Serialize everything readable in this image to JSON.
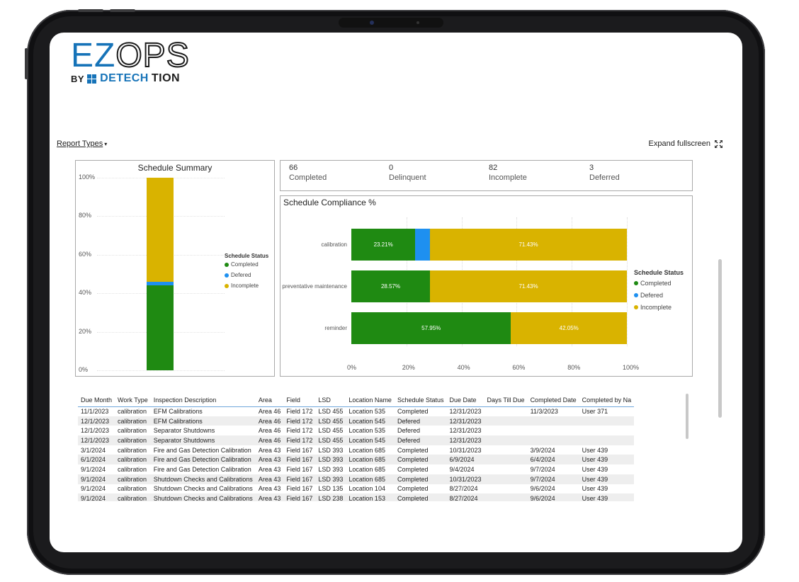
{
  "logo": {
    "main_ez": "EZ",
    "main_ops": "OPS",
    "by": "BY",
    "company_det": "DETECH",
    "company_tion": "TION"
  },
  "toolbar": {
    "report_types": "Report Types",
    "expand": "Expand fullscreen"
  },
  "colors": {
    "completed": "#1f8a12",
    "deferred": "#1e90f0",
    "incomplete": "#d9b300"
  },
  "kpis": [
    {
      "value": "66",
      "label": "Completed"
    },
    {
      "value": "0",
      "label": "Delinquent"
    },
    {
      "value": "82",
      "label": "Incomplete"
    },
    {
      "value": "3",
      "label": "Deferred"
    }
  ],
  "chart_data": [
    {
      "type": "bar",
      "title": "Schedule Summary",
      "categories": [
        ""
      ],
      "series": [
        {
          "name": "Completed",
          "values": [
            44
          ]
        },
        {
          "name": "Defered",
          "values": [
            2
          ]
        },
        {
          "name": "Incomplete",
          "values": [
            54
          ]
        }
      ],
      "ytick_labels": [
        "100%",
        "80%",
        "60%",
        "40%",
        "20%",
        "0%"
      ],
      "ylim": [
        0,
        100
      ],
      "stacked": true,
      "legend_title": "Schedule Status",
      "legend_position": "right"
    },
    {
      "type": "bar",
      "orientation": "horizontal",
      "title": "Schedule Compliance %",
      "categories": [
        "calibration",
        "preventative maintenance",
        "reminder"
      ],
      "series": [
        {
          "name": "Completed",
          "values": [
            23.21,
            28.57,
            57.95
          ]
        },
        {
          "name": "Defered",
          "values": [
            5.36,
            0,
            0
          ]
        },
        {
          "name": "Incomplete",
          "values": [
            71.43,
            71.43,
            42.05
          ]
        }
      ],
      "data_labels": [
        [
          "23.21%",
          "",
          "71.43%"
        ],
        [
          "28.57%",
          "",
          "71.43%"
        ],
        [
          "57.95%",
          "",
          "42.05%"
        ]
      ],
      "xtick_labels": [
        "0%",
        "20%",
        "40%",
        "60%",
        "80%",
        "100%"
      ],
      "xlim": [
        0,
        100
      ],
      "stacked": true,
      "legend_title": "Schedule Status",
      "legend_position": "right"
    }
  ],
  "table": {
    "headers": [
      "Due Month",
      "Work Type",
      "Inspection Description",
      "Area",
      "Field",
      "LSD",
      "Location Name",
      "Schedule Status",
      "Due Date",
      "Days Till Due",
      "Completed Date",
      "Completed by Na"
    ],
    "rows": [
      [
        "11/1/2023",
        "calibration",
        "EFM Calibrations",
        "Area 46",
        "Field 172",
        "LSD 455",
        "Location 535",
        "Completed",
        "12/31/2023",
        "",
        "11/3/2023",
        "User 371"
      ],
      [
        "12/1/2023",
        "calibration",
        "EFM Calibrations",
        "Area 46",
        "Field 172",
        "LSD 455",
        "Location 545",
        "Defered",
        "12/31/2023",
        "",
        "",
        ""
      ],
      [
        "12/1/2023",
        "calibration",
        "Separator Shutdowns",
        "Area 46",
        "Field 172",
        "LSD 455",
        "Location 535",
        "Defered",
        "12/31/2023",
        "",
        "",
        ""
      ],
      [
        "12/1/2023",
        "calibration",
        "Separator Shutdowns",
        "Area 46",
        "Field 172",
        "LSD 455",
        "Location 545",
        "Defered",
        "12/31/2023",
        "",
        "",
        ""
      ],
      [
        "3/1/2024",
        "calibration",
        "Fire and Gas Detection Calibration",
        "Area 43",
        "Field 167",
        "LSD 393",
        "Location 685",
        "Completed",
        "10/31/2023",
        "",
        "3/9/2024",
        "User 439"
      ],
      [
        "6/1/2024",
        "calibration",
        "Fire and Gas Detection Calibration",
        "Area 43",
        "Field 167",
        "LSD 393",
        "Location 685",
        "Completed",
        "6/9/2024",
        "",
        "6/4/2024",
        "User 439"
      ],
      [
        "9/1/2024",
        "calibration",
        "Fire and Gas Detection Calibration",
        "Area 43",
        "Field 167",
        "LSD 393",
        "Location 685",
        "Completed",
        "9/4/2024",
        "",
        "9/7/2024",
        "User 439"
      ],
      [
        "9/1/2024",
        "calibration",
        "Shutdown Checks and Calibrations",
        "Area 43",
        "Field 167",
        "LSD 393",
        "Location 685",
        "Completed",
        "10/31/2023",
        "",
        "9/7/2024",
        "User 439"
      ],
      [
        "9/1/2024",
        "calibration",
        "Shutdown Checks and Calibrations",
        "Area 43",
        "Field 167",
        "LSD 135",
        "Location 104",
        "Completed",
        "8/27/2024",
        "",
        "9/6/2024",
        "User 439"
      ],
      [
        "9/1/2024",
        "calibration",
        "Shutdown Checks and Calibrations",
        "Area 43",
        "Field 167",
        "LSD 238",
        "Location 153",
        "Completed",
        "8/27/2024",
        "",
        "9/6/2024",
        "User 439"
      ]
    ]
  }
}
